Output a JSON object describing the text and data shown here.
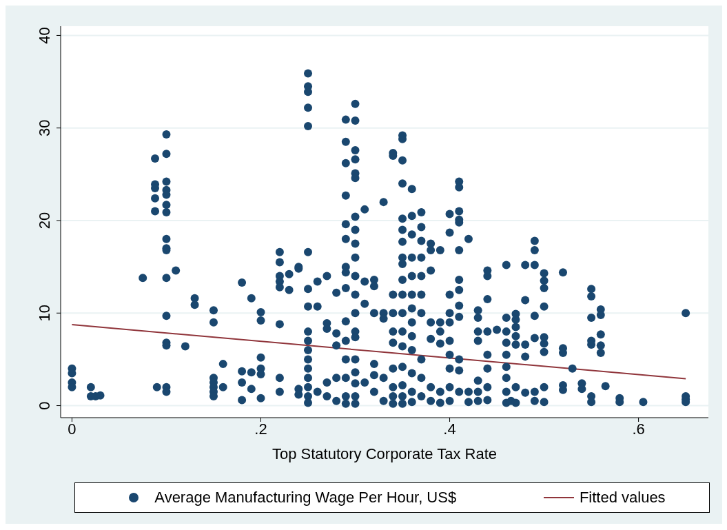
{
  "chart_data": {
    "type": "scatter",
    "xlabel": "Top Statutory Corporate Tax Rate",
    "xlim": [
      -0.012,
      0.674
    ],
    "ylim": [
      -1.3,
      41
    ],
    "xticks": [
      {
        "value": 0,
        "label": "0"
      },
      {
        "value": 0.2,
        "label": ".2"
      },
      {
        "value": 0.4,
        "label": ".4"
      },
      {
        "value": 0.6,
        "label": ".6"
      }
    ],
    "yticks": [
      0,
      10,
      20,
      30,
      40
    ],
    "grid": "y",
    "legend": "bottom",
    "series": [
      {
        "name": "Average Manufacturing Wage Per Hour, US$",
        "color": "#1a476f",
        "marker": "circle",
        "x": [
          0,
          0,
          0,
          0,
          0.02,
          0.02,
          0.025,
          0.03,
          0.075,
          0.088,
          0.088,
          0.088,
          0.088,
          0.088,
          0.09,
          0.1,
          0.1,
          0.1,
          0.1,
          0.1,
          0.1,
          0.1,
          0.1,
          0.1,
          0.1,
          0.1,
          0.1,
          0.1,
          0.1,
          0.1,
          0.1,
          0.11,
          0.12,
          0.13,
          0.13,
          0.15,
          0.15,
          0.15,
          0.15,
          0.15,
          0.15,
          0.15,
          0.16,
          0.16,
          0.18,
          0.18,
          0.18,
          0.18,
          0.19,
          0.19,
          0.19,
          0.2,
          0.2,
          0.2,
          0.2,
          0.2,
          0.2,
          0.22,
          0.22,
          0.22,
          0.22,
          0.22,
          0.22,
          0.22,
          0.22,
          0.23,
          0.23,
          0.24,
          0.24,
          0.24,
          0.24,
          0.25,
          0.25,
          0.25,
          0.25,
          0.25,
          0.25,
          0.25,
          0.25,
          0.25,
          0.25,
          0.25,
          0.25,
          0.25,
          0.25,
          0.25,
          0.25,
          0.25,
          0.26,
          0.26,
          0.26,
          0.27,
          0.27,
          0.27,
          0.27,
          0.27,
          0.28,
          0.28,
          0.28,
          0.28,
          0.28,
          0.29,
          0.29,
          0.29,
          0.29,
          0.29,
          0.29,
          0.29,
          0.29,
          0.29,
          0.29,
          0.29,
          0.29,
          0.29,
          0.29,
          0.29,
          0.3,
          0.3,
          0.3,
          0.3,
          0.3,
          0.3,
          0.3,
          0.3,
          0.3,
          0.3,
          0.3,
          0.3,
          0.3,
          0.3,
          0.3,
          0.3,
          0.3,
          0.3,
          0.3,
          0.3,
          0.31,
          0.31,
          0.31,
          0.31,
          0.32,
          0.32,
          0.32,
          0.32,
          0.32,
          0.32,
          0.33,
          0.33,
          0.33,
          0.33,
          0.33,
          0.34,
          0.34,
          0.34,
          0.34,
          0.34,
          0.34,
          0.34,
          0.34,
          0.34,
          0.34,
          0.35,
          0.35,
          0.35,
          0.35,
          0.35,
          0.35,
          0.35,
          0.35,
          0.35,
          0.35,
          0.35,
          0.35,
          0.35,
          0.35,
          0.35,
          0.35,
          0.35,
          0.35,
          0.36,
          0.36,
          0.36,
          0.36,
          0.36,
          0.36,
          0.36,
          0.36,
          0.36,
          0.36,
          0.36,
          0.36,
          0.36,
          0.37,
          0.37,
          0.37,
          0.37,
          0.37,
          0.37,
          0.37,
          0.37,
          0.37,
          0.37,
          0.38,
          0.38,
          0.38,
          0.38,
          0.38,
          0.38,
          0.38,
          0.39,
          0.39,
          0.39,
          0.39,
          0.39,
          0.39,
          0.4,
          0.4,
          0.4,
          0.4,
          0.4,
          0.4,
          0.4,
          0.4,
          0.4,
          0.4,
          0.41,
          0.41,
          0.41,
          0.41,
          0.41,
          0.41,
          0.41,
          0.41,
          0.41,
          0.41,
          0.41,
          0.41,
          0.41,
          0.42,
          0.42,
          0.42,
          0.43,
          0.43,
          0.43,
          0.43,
          0.43,
          0.43,
          0.43,
          0.44,
          0.44,
          0.44,
          0.44,
          0.44,
          0.44,
          0.44,
          0.44,
          0.45,
          0.46,
          0.46,
          0.46,
          0.46,
          0.46,
          0.46,
          0.46,
          0.46,
          0.46,
          0.465,
          0.47,
          0.47,
          0.47,
          0.47,
          0.47,
          0.47,
          0.47,
          0.48,
          0.48,
          0.48,
          0.48,
          0.48,
          0.49,
          0.49,
          0.49,
          0.49,
          0.49,
          0.49,
          0.49,
          0.5,
          0.5,
          0.5,
          0.5,
          0.5,
          0.5,
          0.5,
          0.5,
          0.5,
          0.52,
          0.52,
          0.52,
          0.52,
          0.52,
          0.53,
          0.54,
          0.54,
          0.55,
          0.55,
          0.55,
          0.55,
          0.55,
          0.55,
          0.55,
          0.56,
          0.56,
          0.56,
          0.56,
          0.56,
          0.565,
          0.58,
          0.58,
          0.605,
          0.65,
          0.65,
          0.65,
          0.65
        ],
        "values": [
          4,
          3.5,
          2.5,
          2,
          2,
          1,
          1,
          1.1,
          13.8,
          26.7,
          23.9,
          23.5,
          22.4,
          21,
          2,
          29.3,
          27.2,
          24.2,
          23.3,
          22.8,
          21.7,
          20.9,
          18,
          17,
          16.8,
          13.8,
          9.7,
          6.8,
          6.5,
          2,
          1.5,
          14.6,
          6.4,
          11.6,
          10.9,
          10.3,
          9,
          3,
          2.5,
          2,
          1.5,
          1,
          4.5,
          2,
          13.3,
          3.7,
          2.5,
          0.6,
          11.6,
          3.6,
          1.8,
          10.1,
          9.2,
          5.2,
          4,
          3.4,
          0.8,
          16.6,
          15.5,
          14,
          13.4,
          12.8,
          8.8,
          3,
          1.5,
          14.2,
          12.5,
          15,
          14.8,
          1.8,
          1.2,
          35.9,
          34.5,
          33.9,
          32.2,
          30.2,
          16.6,
          12.6,
          10.7,
          8,
          7,
          6,
          5,
          4,
          3,
          2,
          1,
          0.3,
          13.4,
          10.7,
          1.5,
          14,
          8.9,
          8.3,
          2.5,
          1,
          12.2,
          7.8,
          6.5,
          3,
          0.5,
          30.9,
          28.5,
          26.2,
          22.7,
          19.6,
          18,
          15,
          14.4,
          12.7,
          9.1,
          7,
          5,
          3,
          1,
          0.2,
          32.6,
          30.8,
          27.6,
          26.6,
          25.1,
          24.6,
          20.4,
          19,
          17.5,
          16,
          14,
          12,
          10,
          8,
          7.4,
          5,
          3.6,
          2.4,
          1,
          0.2,
          21.2,
          13.4,
          11,
          2.5,
          13.6,
          12.9,
          10,
          4.5,
          3.3,
          1.5,
          22,
          10,
          9.4,
          3,
          0.5,
          27.3,
          27,
          12,
          10,
          8,
          6.8,
          4,
          2,
          1,
          0.2,
          29.2,
          28.8,
          26.5,
          24,
          20.2,
          19,
          17.7,
          16,
          15.3,
          13.6,
          12,
          10,
          8,
          6.4,
          4.2,
          2.2,
          1,
          0.2,
          23.4,
          20.5,
          18.5,
          16,
          14,
          12,
          10.5,
          9,
          7.5,
          6,
          3.5,
          1.5,
          0.4,
          20.9,
          19.3,
          17.8,
          16,
          14,
          12,
          10,
          5,
          3,
          1,
          17.5,
          16.8,
          14.6,
          9,
          7.2,
          2,
          0.5,
          16.8,
          9,
          8,
          6.7,
          1.5,
          0.3,
          20.7,
          18.7,
          12,
          10,
          9,
          7,
          5.5,
          4,
          2,
          0.5,
          24.2,
          23.6,
          21,
          20.1,
          19.8,
          16.8,
          13.6,
          12.5,
          10.8,
          9.6,
          5,
          3.8,
          1.5,
          18,
          1.5,
          0.4,
          10.3,
          9.5,
          8,
          7,
          2.7,
          1.5,
          0.5,
          14.6,
          14,
          11.5,
          8,
          5.5,
          4,
          2,
          0.6,
          8.2,
          15.2,
          9.5,
          8,
          6.8,
          5.5,
          4.2,
          3,
          1.5,
          0.3,
          0.5,
          9.9,
          9.3,
          8.5,
          7.5,
          6.6,
          2,
          0.3,
          15.2,
          11.4,
          6.6,
          5.3,
          1.4,
          17.8,
          16.8,
          15.2,
          9.7,
          7.3,
          1.5,
          0.5,
          14.3,
          13.5,
          12.7,
          10.7,
          7.4,
          6.7,
          5.8,
          2,
          0.4,
          14.4,
          6.2,
          5.7,
          2.2,
          1.7,
          4,
          2.4,
          1.8,
          12.6,
          11.8,
          9.5,
          7,
          6.6,
          1,
          0.4,
          10.4,
          9.8,
          7.7,
          6.5,
          5.7,
          2.1,
          0.8,
          0.4,
          0.4,
          10,
          1,
          0.7,
          0.4
        ]
      },
      {
        "name": "Fitted values",
        "color": "#90353b",
        "type": "line",
        "line_style": "solid",
        "x": [
          0,
          0.65
        ],
        "values": [
          8.75,
          2.9
        ]
      }
    ]
  }
}
